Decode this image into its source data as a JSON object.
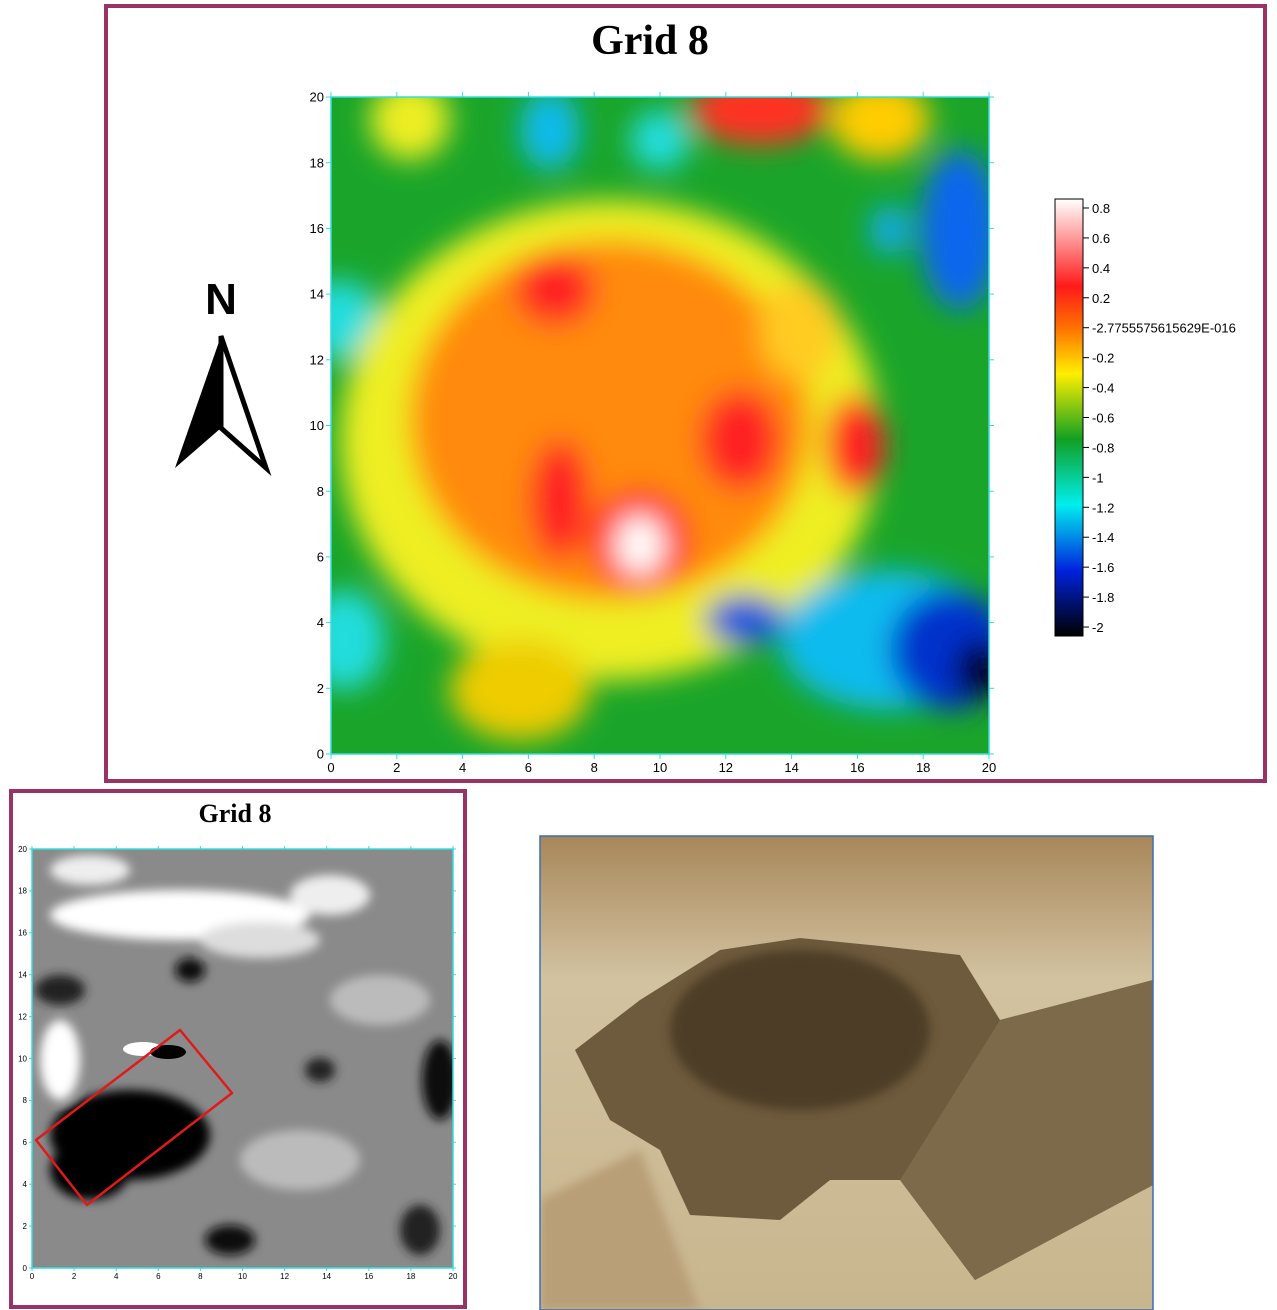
{
  "chart_data": [
    {
      "type": "contour",
      "title": "Grid 8",
      "annotation": "N",
      "xlim": [
        0,
        20
      ],
      "ylim": [
        0,
        20
      ],
      "xticks": [
        0,
        2,
        4,
        6,
        8,
        10,
        12,
        14,
        16,
        18,
        20
      ],
      "yticks": [
        0,
        2,
        4,
        6,
        8,
        10,
        12,
        14,
        16,
        18,
        20
      ],
      "colorbar_lim": [
        -2.06,
        0.86
      ],
      "colorbar_ticks": [
        0.8,
        0.6,
        0.4,
        0.2,
        {
          "value": -2.7755575615629e-16,
          "label": "-2.7755575615629E-016"
        },
        -0.2,
        -0.4,
        -0.6,
        -0.8,
        -1,
        -1.2,
        -1.4,
        -1.6,
        -1.8,
        -2
      ]
    },
    {
      "type": "grayscale",
      "title": "Grid 8",
      "xlim": [
        0,
        20
      ],
      "ylim": [
        0,
        20
      ],
      "xticks": [
        0,
        2,
        4,
        6,
        8,
        10,
        12,
        14,
        16,
        18,
        20
      ],
      "yticks": [
        0,
        2,
        4,
        6,
        8,
        10,
        12,
        14,
        16,
        18,
        20
      ]
    }
  ]
}
